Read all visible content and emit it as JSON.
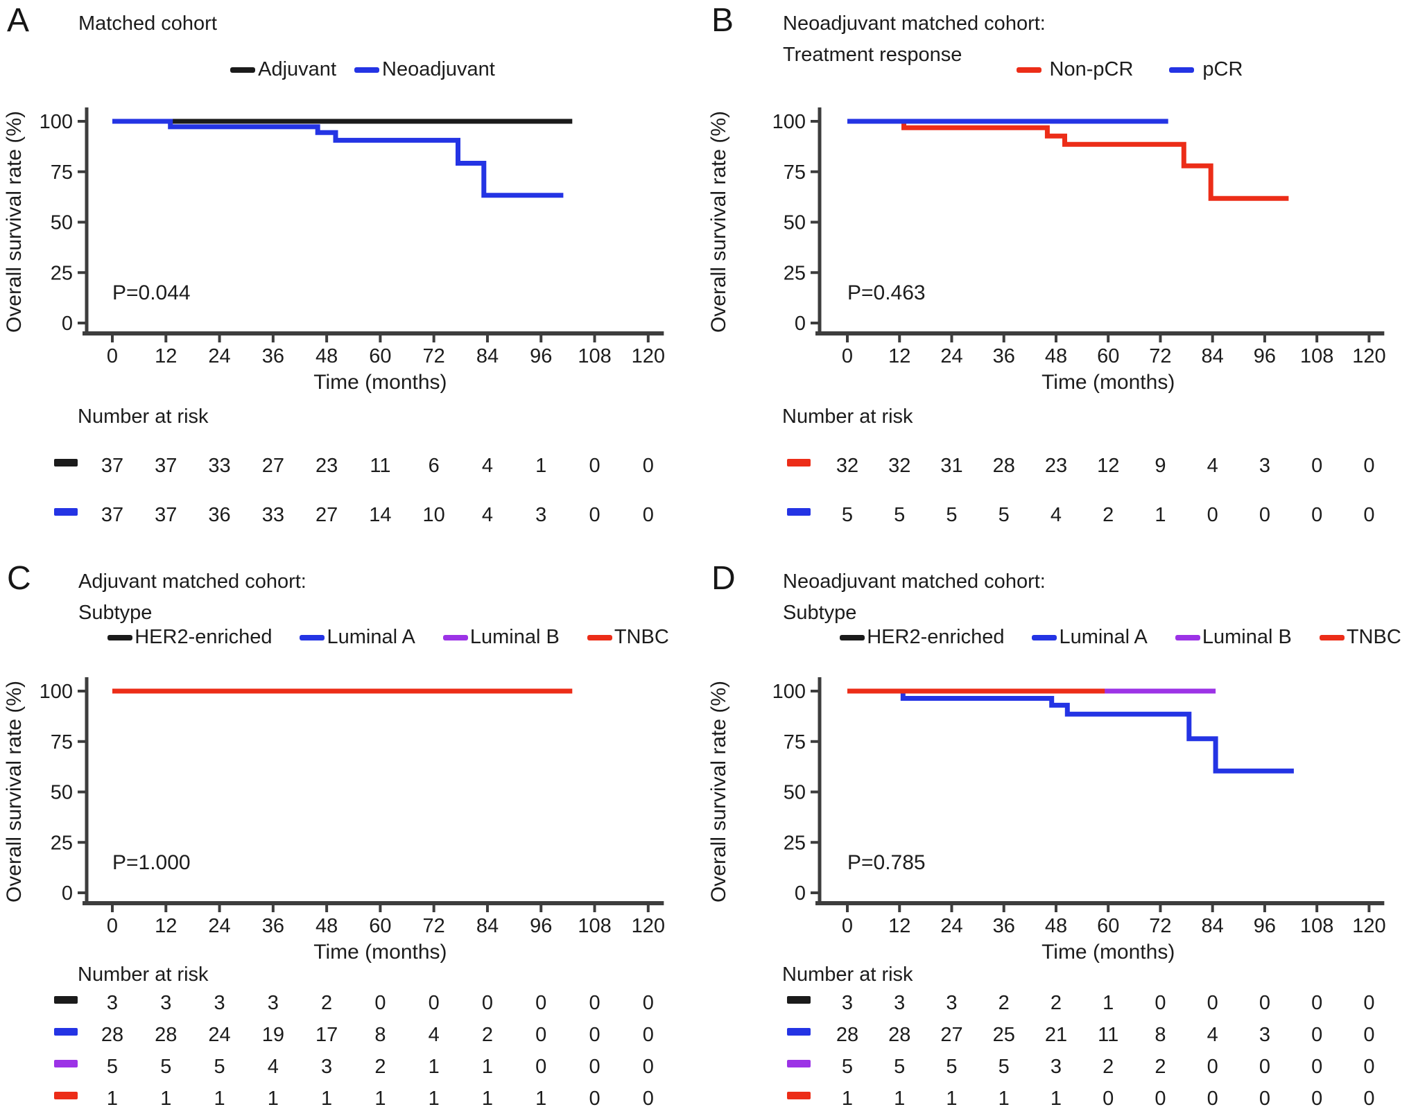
{
  "figure_title": "Kaplan-Meier overall survival figure",
  "shared": {
    "y_axis_label": "Overall survival rate (%)",
    "x_axis_label": "Time (months)",
    "risk_table_label": "Number at risk",
    "colors": {
      "black": "#1b1b1b",
      "blue": "#2434e4",
      "red": "#ec2d18",
      "purple": "#9c33e6"
    }
  },
  "chart_data": [
    {
      "type": "line",
      "subtype": "kaplan-meier-step",
      "letter": "A",
      "title": "Matched cohort",
      "p_value": "P=0.044",
      "xlabel": "Time (months)",
      "ylabel": "Overall survival rate (%)",
      "xlim": [
        0,
        120
      ],
      "ylim": [
        0,
        100
      ],
      "x_ticks": [
        0,
        12,
        24,
        36,
        48,
        60,
        72,
        84,
        96,
        108,
        120
      ],
      "y_ticks": [
        100,
        75,
        50,
        25,
        0
      ],
      "legend_position": "top",
      "legend": [
        {
          "label": "Adjuvant",
          "color": "#1b1b1b"
        },
        {
          "label": "Neoadjuvant",
          "color": "#2434e4"
        }
      ],
      "series": [
        {
          "name": "Adjuvant",
          "color": "#1b1b1b",
          "points": [
            [
              0,
              100
            ],
            [
              103,
              100
            ]
          ]
        },
        {
          "name": "Neoadjuvant",
          "color": "#2434e4",
          "points": [
            [
              0,
              100
            ],
            [
              13,
              100
            ],
            [
              13,
              97.3
            ],
            [
              46,
              97.3
            ],
            [
              46,
              94.4
            ],
            [
              50,
              94.4
            ],
            [
              50,
              90.6
            ],
            [
              77.4,
              90.6
            ],
            [
              77.4,
              79.2
            ],
            [
              83.2,
              79.2
            ],
            [
              83.2,
              63.3
            ],
            [
              101,
              63.3
            ]
          ]
        }
      ],
      "risk_table": {
        "label": "Number at risk",
        "rows": [
          {
            "name": "Adjuvant",
            "color": "#1b1b1b",
            "values": [
              "37",
              "37",
              "33",
              "27",
              "23",
              "11",
              "6",
              "4",
              "1",
              "0",
              "0"
            ]
          },
          {
            "name": "Neoadjuvant",
            "color": "#2434e4",
            "values": [
              "37",
              "37",
              "36",
              "33",
              "27",
              "14",
              "10",
              "4",
              "3",
              "0",
              "0"
            ]
          }
        ]
      }
    },
    {
      "type": "line",
      "subtype": "kaplan-meier-step",
      "letter": "B",
      "title": "Neoadjuvant matched cohort:\nTreatment response",
      "p_value": "P=0.463",
      "xlabel": "Time (months)",
      "ylabel": "Overall survival rate (%)",
      "xlim": [
        0,
        120
      ],
      "ylim": [
        0,
        100
      ],
      "x_ticks": [
        0,
        12,
        24,
        36,
        48,
        60,
        72,
        84,
        96,
        108,
        120
      ],
      "y_ticks": [
        100,
        75,
        50,
        25,
        0
      ],
      "legend_position": "top",
      "legend": [
        {
          "label": "Non-pCR",
          "color": "#ec2d18"
        },
        {
          "label": "pCR",
          "color": "#2434e4"
        }
      ],
      "series": [
        {
          "name": "Non-pCR",
          "color": "#ec2d18",
          "points": [
            [
              0,
              100
            ],
            [
              13,
              100
            ],
            [
              13,
              96.8
            ],
            [
              46,
              96.8
            ],
            [
              46,
              92.7
            ],
            [
              50,
              92.7
            ],
            [
              50,
              88.6
            ],
            [
              77.4,
              88.6
            ],
            [
              77.4,
              77.9
            ],
            [
              83.6,
              77.9
            ],
            [
              83.6,
              61.8
            ],
            [
              101.5,
              61.8
            ]
          ]
        },
        {
          "name": "pCR",
          "color": "#2434e4",
          "points": [
            [
              0,
              100
            ],
            [
              73.8,
              100
            ]
          ]
        }
      ],
      "risk_table": {
        "label": "Number at risk",
        "rows": [
          {
            "name": "Non-pCR",
            "color": "#ec2d18",
            "values": [
              "32",
              "32",
              "31",
              "28",
              "23",
              "12",
              "9",
              "4",
              "3",
              "0",
              "0"
            ]
          },
          {
            "name": "pCR",
            "color": "#2434e4",
            "values": [
              "5",
              "5",
              "5",
              "5",
              "4",
              "2",
              "1",
              "0",
              "0",
              "0",
              "0"
            ]
          }
        ]
      }
    },
    {
      "type": "line",
      "subtype": "kaplan-meier-step",
      "letter": "C",
      "title": "Adjuvant matched cohort:\nSubtype",
      "p_value": "P=1.000",
      "xlabel": "Time (months)",
      "ylabel": "Overall survival rate (%)",
      "xlim": [
        0,
        120
      ],
      "ylim": [
        0,
        100
      ],
      "x_ticks": [
        0,
        12,
        24,
        36,
        48,
        60,
        72,
        84,
        96,
        108,
        120
      ],
      "y_ticks": [
        100,
        75,
        50,
        25,
        0
      ],
      "legend_position": "top",
      "legend": [
        {
          "label": "HER2-enriched",
          "color": "#1b1b1b"
        },
        {
          "label": "Luminal A",
          "color": "#2434e4"
        },
        {
          "label": "Luminal B",
          "color": "#9c33e6"
        },
        {
          "label": "TNBC",
          "color": "#ec2d18"
        }
      ],
      "series": [
        {
          "name": "HER2-enriched",
          "color": "#1b1b1b",
          "points": [
            [
              0,
              100
            ],
            [
              58,
              100
            ]
          ]
        },
        {
          "name": "Luminal A",
          "color": "#2434e4",
          "points": [
            [
              0,
              100
            ],
            [
              86,
              100
            ]
          ]
        },
        {
          "name": "Luminal B",
          "color": "#9c33e6",
          "points": [
            [
              0,
              100
            ],
            [
              86,
              100
            ]
          ]
        },
        {
          "name": "TNBC",
          "color": "#ec2d18",
          "points": [
            [
              0,
              100
            ],
            [
              103,
              100
            ]
          ]
        }
      ],
      "risk_table": {
        "label": "Number at risk",
        "rows": [
          {
            "name": "HER2-enriched",
            "color": "#1b1b1b",
            "values": [
              "3",
              "3",
              "3",
              "3",
              "2",
              "0",
              "0",
              "0",
              "0",
              "0",
              "0"
            ]
          },
          {
            "name": "Luminal A",
            "color": "#2434e4",
            "values": [
              "28",
              "28",
              "24",
              "19",
              "17",
              "8",
              "4",
              "2",
              "0",
              "0",
              "0"
            ]
          },
          {
            "name": "Luminal B",
            "color": "#9c33e6",
            "values": [
              "5",
              "5",
              "5",
              "4",
              "3",
              "2",
              "1",
              "1",
              "0",
              "0",
              "0"
            ]
          },
          {
            "name": "TNBC",
            "color": "#ec2d18",
            "values": [
              "1",
              "1",
              "1",
              "1",
              "1",
              "1",
              "1",
              "1",
              "1",
              "0",
              "0"
            ]
          }
        ]
      }
    },
    {
      "type": "line",
      "subtype": "kaplan-meier-step",
      "letter": "D",
      "title": "Neoadjuvant matched cohort:\nSubtype",
      "p_value": "P=0.785",
      "xlabel": "Time (months)",
      "ylabel": "Overall survival rate (%)",
      "xlim": [
        0,
        120
      ],
      "ylim": [
        0,
        100
      ],
      "x_ticks": [
        0,
        12,
        24,
        36,
        48,
        60,
        72,
        84,
        96,
        108,
        120
      ],
      "y_ticks": [
        100,
        75,
        50,
        25,
        0
      ],
      "legend_position": "top",
      "legend": [
        {
          "label": "HER2-enriched",
          "color": "#1b1b1b"
        },
        {
          "label": "Luminal A",
          "color": "#2434e4"
        },
        {
          "label": "Luminal B",
          "color": "#9c33e6"
        },
        {
          "label": "TNBC",
          "color": "#ec2d18"
        }
      ],
      "series": [
        {
          "name": "HER2-enriched",
          "color": "#1b1b1b",
          "points": [
            [
              0,
              100
            ],
            [
              62,
              100
            ]
          ]
        },
        {
          "name": "Luminal A",
          "color": "#2434e4",
          "points": [
            [
              0,
              100
            ],
            [
              12.8,
              100
            ],
            [
              12.8,
              96.4
            ],
            [
              47,
              96.4
            ],
            [
              47,
              93
            ],
            [
              50.6,
              93
            ],
            [
              50.6,
              88.6
            ],
            [
              78.6,
              88.6
            ],
            [
              78.6,
              76.4
            ],
            [
              84.7,
              76.4
            ],
            [
              84.7,
              60.4
            ],
            [
              102.7,
              60.4
            ]
          ]
        },
        {
          "name": "Luminal B",
          "color": "#9c33e6",
          "points": [
            [
              0,
              100
            ],
            [
              84.7,
              100
            ]
          ]
        },
        {
          "name": "TNBC",
          "color": "#ec2d18",
          "points": [
            [
              0,
              100
            ],
            [
              59.2,
              100
            ]
          ]
        }
      ],
      "risk_table": {
        "label": "Number at risk",
        "rows": [
          {
            "name": "HER2-enriched",
            "color": "#1b1b1b",
            "values": [
              "3",
              "3",
              "3",
              "2",
              "2",
              "1",
              "0",
              "0",
              "0",
              "0",
              "0"
            ]
          },
          {
            "name": "Luminal A",
            "color": "#2434e4",
            "values": [
              "28",
              "28",
              "27",
              "25",
              "21",
              "11",
              "8",
              "4",
              "3",
              "0",
              "0"
            ]
          },
          {
            "name": "Luminal B",
            "color": "#9c33e6",
            "values": [
              "5",
              "5",
              "5",
              "5",
              "3",
              "2",
              "2",
              "0",
              "0",
              "0",
              "0"
            ]
          },
          {
            "name": "TNBC",
            "color": "#ec2d18",
            "values": [
              "1",
              "1",
              "1",
              "1",
              "1",
              "0",
              "0",
              "0",
              "0",
              "0",
              "0"
            ]
          }
        ]
      }
    }
  ]
}
